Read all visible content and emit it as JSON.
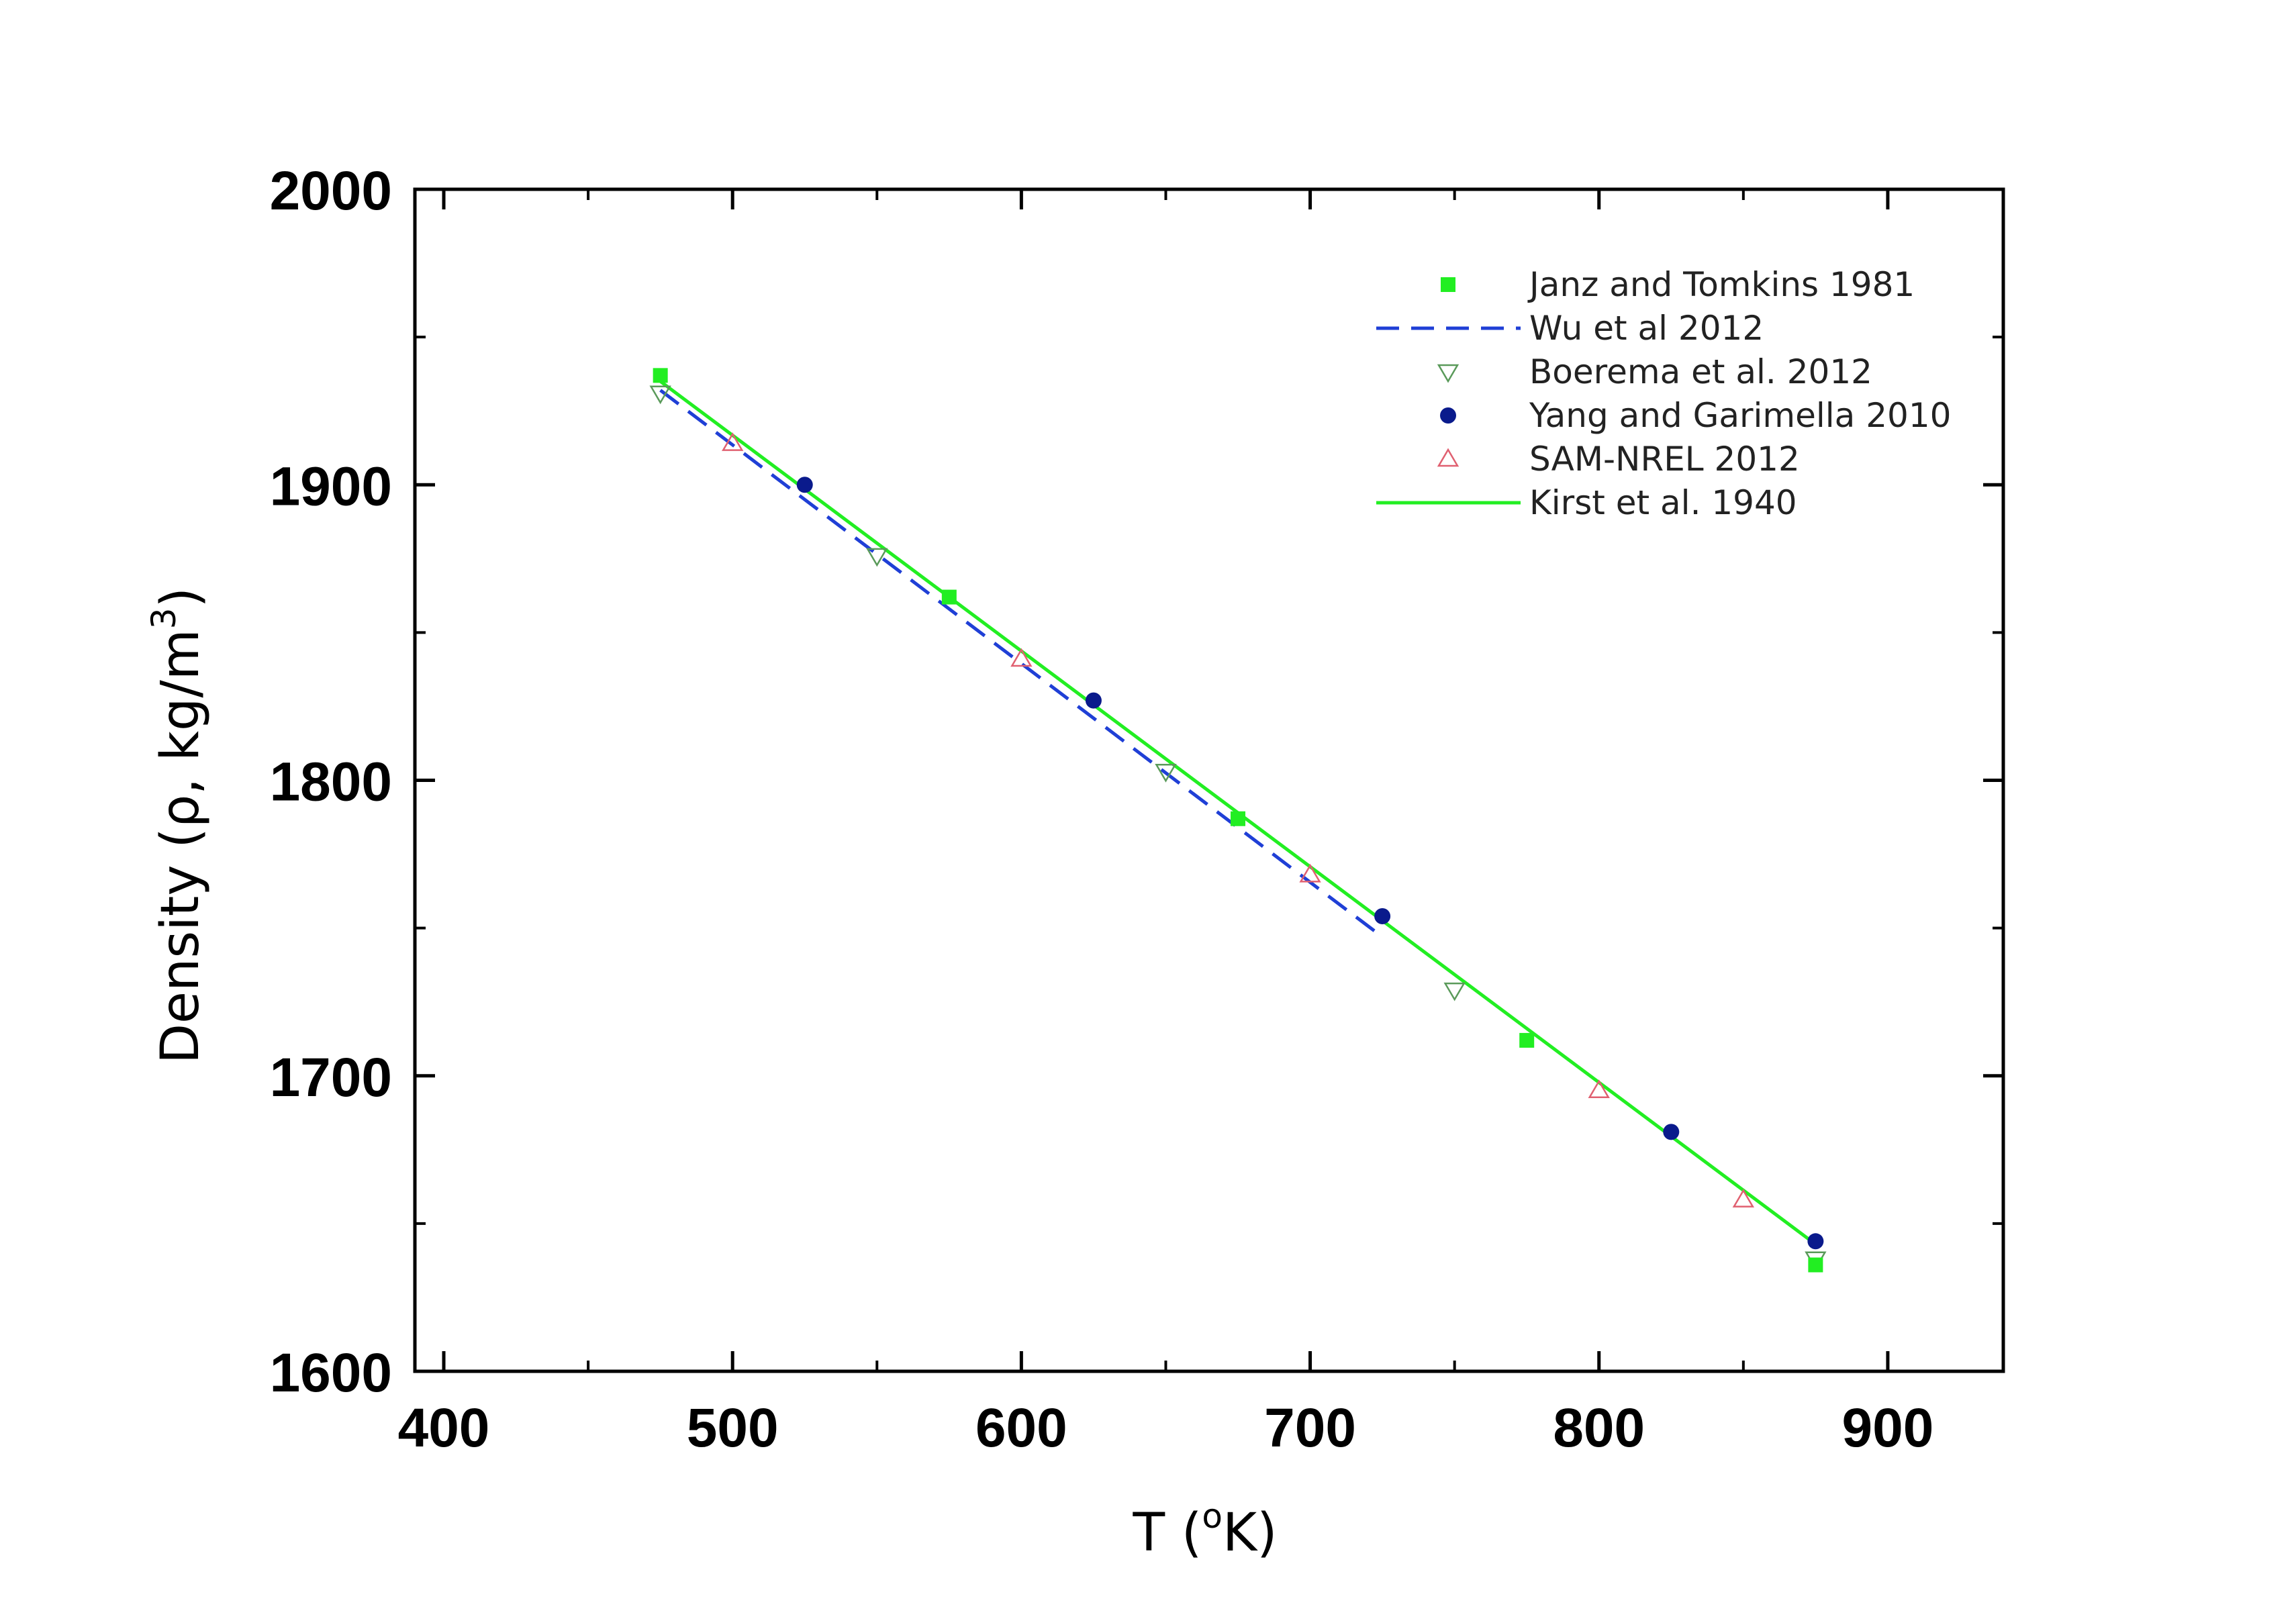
{
  "chart_data": {
    "type": "scatter",
    "title": "",
    "xlabel": "T (",
    "xlabel_sup": "o",
    "xlabel_tail": "K)",
    "ylabel": "Density (ρ, kg/m",
    "ylabel_sup": "3",
    "ylabel_tail": ")",
    "xlim": [
      390,
      940
    ],
    "ylim": [
      1600,
      2000
    ],
    "x_ticks": [
      "400",
      "500",
      "600",
      "700",
      "800",
      "900"
    ],
    "y_ticks": [
      "1600",
      "1700",
      "1800",
      "1900",
      "2000"
    ],
    "x_minor_ticks": [
      450,
      550,
      650,
      750,
      850
    ],
    "y_minor_ticks": [
      1650,
      1750,
      1850,
      1950
    ],
    "grid": false,
    "legend_position": "top-right",
    "series": [
      {
        "name": "Janz and Tomkins 1981",
        "kind": "marker",
        "marker": "square",
        "color": "#22ee22",
        "x": [
          475,
          575,
          675,
          775,
          875
        ],
        "y": [
          1937,
          1862,
          1787,
          1712,
          1636
        ]
      },
      {
        "name": "Wu et al 2012",
        "kind": "line",
        "style": "dashed",
        "color": "#1f3fd6",
        "x": [
          475,
          725
        ],
        "y": [
          1932,
          1747
        ]
      },
      {
        "name": "Boerema et al. 2012",
        "kind": "marker",
        "marker": "triangle-down",
        "color": "#5a9a5a",
        "x": [
          475,
          550,
          650,
          750,
          875
        ],
        "y": [
          1931,
          1876,
          1803,
          1729,
          1638
        ]
      },
      {
        "name": "Yang and Garimella 2010",
        "kind": "marker",
        "marker": "circle",
        "color": "#0a1a8c",
        "x": [
          525,
          625,
          725,
          825,
          875
        ],
        "y": [
          1900,
          1827,
          1754,
          1681,
          1644
        ]
      },
      {
        "name": "SAM-NREL 2012",
        "kind": "marker",
        "marker": "triangle-up",
        "color": "#e06070",
        "x": [
          500,
          600,
          700,
          800,
          850
        ],
        "y": [
          1914,
          1841,
          1768,
          1695,
          1658
        ]
      },
      {
        "name": "Kirst et al. 1940",
        "kind": "line",
        "style": "solid",
        "color": "#22ee22",
        "x": [
          475,
          875
        ],
        "y": [
          1935,
          1643
        ]
      }
    ]
  }
}
